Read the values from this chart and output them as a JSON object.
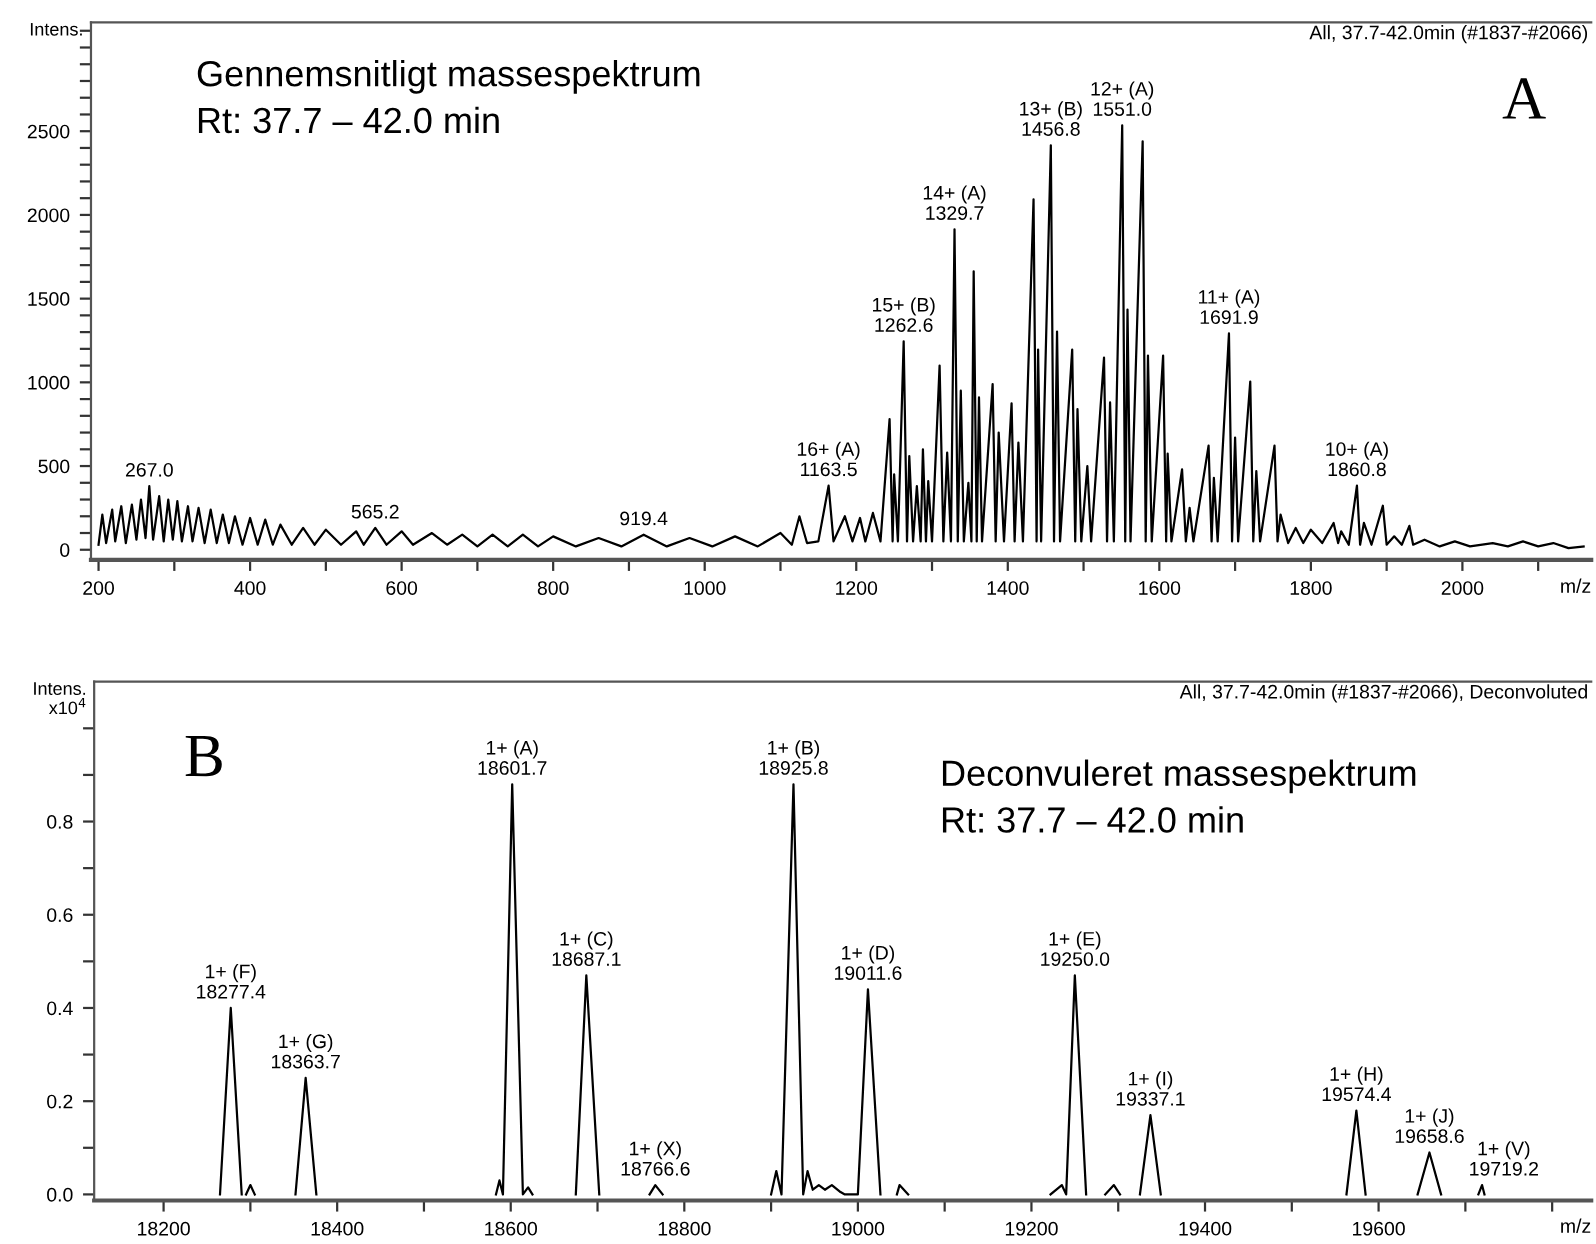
{
  "chart_data": [
    {
      "type": "line",
      "ylabel": "Intens.",
      "xlabel": "m/z",
      "grid": false,
      "marker": "none",
      "line_style": "solid",
      "xlim": [
        190,
        2170
      ],
      "ylim": [
        -60,
        3150
      ],
      "xticks": [
        200,
        {
          "value": 300,
          "label": null
        },
        400,
        {
          "value": 500,
          "label": null
        },
        600,
        {
          "value": 700,
          "label": null
        },
        800,
        {
          "value": 900,
          "label": null
        },
        1000,
        {
          "value": 1100,
          "label": null
        },
        1200,
        {
          "value": 1300,
          "label": null
        },
        1400,
        {
          "value": 1500,
          "label": null
        },
        1600,
        {
          "value": 1700,
          "label": null
        },
        1800,
        {
          "value": 1900,
          "label": null
        },
        2000,
        {
          "value": 2100,
          "label": null
        }
      ],
      "yticks": [
        0,
        {
          "value": 100,
          "label": null
        },
        {
          "value": 200,
          "label": null
        },
        {
          "value": 300,
          "label": null
        },
        {
          "value": 400,
          "label": null
        },
        500,
        {
          "value": 600,
          "label": null
        },
        {
          "value": 700,
          "label": null
        },
        {
          "value": 800,
          "label": null
        },
        {
          "value": 900,
          "label": null
        },
        1000,
        {
          "value": 1100,
          "label": null
        },
        {
          "value": 1200,
          "label": null
        },
        {
          "value": 1300,
          "label": null
        },
        {
          "value": 1400,
          "label": null
        },
        1500,
        {
          "value": 1600,
          "label": null
        },
        {
          "value": 1700,
          "label": null
        },
        {
          "value": 1800,
          "label": null
        },
        {
          "value": 1900,
          "label": null
        },
        2000,
        {
          "value": 2100,
          "label": null
        },
        {
          "value": 2200,
          "label": null
        },
        {
          "value": 2300,
          "label": null
        },
        {
          "value": 2400,
          "label": null
        },
        2500,
        {
          "value": 2600,
          "label": null
        },
        {
          "value": 2700,
          "label": null
        },
        {
          "value": 2800,
          "label": null
        },
        {
          "value": 2900,
          "label": null
        },
        {
          "value": 3000,
          "label": null
        },
        {
          "value": 3100,
          "label": null
        }
      ],
      "series": [
        {
          "color": "#000000",
          "x": [
            200,
            205,
            210,
            218,
            222,
            230,
            236,
            244,
            250,
            256,
            262,
            267,
            272,
            280,
            286,
            292,
            298,
            304,
            310,
            318,
            324,
            332,
            340,
            348,
            356,
            364,
            372,
            380,
            390,
            400,
            410,
            420,
            430,
            440,
            455,
            470,
            485,
            500,
            520,
            540,
            550,
            565.2,
            580,
            600,
            615,
            640,
            660,
            680,
            700,
            720,
            740,
            760,
            780,
            800,
            830,
            860,
            890,
            919.4,
            950,
            980,
            1010,
            1040,
            1070,
            1100,
            1115,
            1125,
            1135,
            1150,
            1163.5,
            1170,
            1185,
            1195,
            1205,
            1212,
            1222,
            1232,
            1244,
            1248,
            1250,
            1255,
            1262.6,
            1267,
            1270,
            1275,
            1280,
            1285,
            1288,
            1292,
            1295,
            1300,
            1310,
            1315,
            1320,
            1325,
            1329.7,
            1334,
            1338,
            1342,
            1348,
            1352,
            1355,
            1359,
            1362,
            1366,
            1380,
            1384,
            1388,
            1395,
            1405,
            1409,
            1414,
            1420,
            1434,
            1438,
            1440,
            1444,
            1456.8,
            1461,
            1465,
            1469,
            1485,
            1489,
            1492,
            1497,
            1505,
            1510,
            1527,
            1531,
            1535,
            1540,
            1551.0,
            1555,
            1558,
            1562,
            1578,
            1582,
            1585,
            1590,
            1605,
            1609,
            1611,
            1616,
            1630,
            1635,
            1640,
            1645,
            1665,
            1669,
            1672,
            1677,
            1691.9,
            1696,
            1700,
            1704,
            1720,
            1724,
            1728,
            1733,
            1752,
            1756,
            1760,
            1770,
            1780,
            1790,
            1800,
            1815,
            1830,
            1836,
            1840,
            1850,
            1860.8,
            1865,
            1870,
            1880,
            1895,
            1900,
            1910,
            1920,
            1930,
            1935,
            1950,
            1970,
            1990,
            2010,
            2040,
            2060,
            2080,
            2100,
            2120,
            2140,
            2160
          ],
          "values": [
            30,
            210,
            40,
            240,
            50,
            260,
            40,
            270,
            60,
            300,
            70,
            380,
            60,
            320,
            50,
            300,
            60,
            290,
            50,
            260,
            50,
            250,
            40,
            240,
            40,
            210,
            40,
            200,
            30,
            190,
            30,
            180,
            30,
            150,
            30,
            130,
            30,
            120,
            30,
            110,
            30,
            130,
            30,
            110,
            30,
            100,
            30,
            90,
            20,
            90,
            20,
            90,
            20,
            80,
            20,
            70,
            20,
            90,
            20,
            70,
            20,
            80,
            20,
            100,
            30,
            200,
            40,
            50,
            383,
            50,
            200,
            50,
            190,
            50,
            220,
            50,
            780,
            50,
            450,
            50,
            1245,
            50,
            560,
            50,
            380,
            50,
            600,
            50,
            410,
            50,
            1100,
            50,
            580,
            50,
            1914,
            50,
            950,
            50,
            400,
            50,
            1663,
            50,
            910,
            50,
            990,
            50,
            700,
            50,
            875,
            50,
            640,
            50,
            2093,
            50,
            1196,
            50,
            2416,
            50,
            1303,
            50,
            1196,
            50,
            840,
            50,
            500,
            50,
            1148,
            50,
            880,
            50,
            2535,
            50,
            1435,
            50,
            2440,
            50,
            1160,
            50,
            1160,
            50,
            574,
            50,
            480,
            50,
            250,
            50,
            622,
            50,
            430,
            50,
            1292,
            50,
            670,
            50,
            1005,
            50,
            470,
            50,
            622,
            50,
            210,
            40,
            130,
            40,
            120,
            40,
            160,
            40,
            110,
            30,
            383,
            30,
            160,
            30,
            263,
            30,
            80,
            30,
            143,
            30,
            60,
            20,
            50,
            20,
            40,
            20,
            50,
            20,
            40,
            10,
            20
          ]
        }
      ],
      "annotations": [
        "All, 37.7-42.0min (#1837-#2066)",
        "Gennemsnitligt massespektrum\nRt: 37.7 – 42.0 min",
        "A",
        {
          "text": "267.0",
          "x": 267,
          "y": 380
        },
        {
          "text": "565.2",
          "x": 565.2,
          "y": 130
        },
        {
          "text": "919.4",
          "x": 919.4,
          "y": 90
        },
        {
          "text": "16+ (A)\n1163.5",
          "x": 1163.5,
          "y": 383
        },
        {
          "text": "15+ (B)\n1262.6",
          "x": 1262.6,
          "y": 1245
        },
        {
          "text": "14+ (A)\n1329.7",
          "x": 1329.7,
          "y": 1914
        },
        {
          "text": "13+ (B)\n1456.8",
          "x": 1456.8,
          "y": 2416
        },
        {
          "text": "12+ (A)\n1551.0",
          "x": 1551.0,
          "y": 2535
        },
        {
          "text": "11+ (A)\n1691.9",
          "x": 1691.9,
          "y": 1292
        },
        {
          "text": "10+ (A)\n1860.8",
          "x": 1860.8,
          "y": 383
        }
      ]
    },
    {
      "type": "line",
      "ylabel": "Intens.\nx10$^{4}$",
      "xlabel": "m/z",
      "grid": false,
      "marker": "none",
      "line_style": "solid",
      "xlim": [
        18120,
        19845
      ],
      "ylim": [
        -0.013,
        1.1
      ],
      "xticks": [
        {
          "value": 18200,
          "label": "18200"
        },
        {
          "value": 18300,
          "label": null
        },
        {
          "value": 18400,
          "label": "18400"
        },
        {
          "value": 18500,
          "label": null
        },
        {
          "value": 18600,
          "label": "18600"
        },
        {
          "value": 18700,
          "label": null
        },
        {
          "value": 18800,
          "label": "18800"
        },
        {
          "value": 18900,
          "label": null
        },
        {
          "value": 19000,
          "label": "19000"
        },
        {
          "value": 19100,
          "label": null
        },
        {
          "value": 19200,
          "label": "19200"
        },
        {
          "value": 19300,
          "label": null
        },
        {
          "value": 19400,
          "label": "19400"
        },
        {
          "value": 19500,
          "label": null
        },
        {
          "value": 19600,
          "label": "19600"
        },
        {
          "value": 19700,
          "label": null
        },
        {
          "value": 19800,
          "label": null
        }
      ],
      "yticks": [
        {
          "value": 0,
          "label": "0.0"
        },
        {
          "value": 0.1,
          "label": null
        },
        {
          "value": 0.2,
          "label": "0.2"
        },
        {
          "value": 0.3,
          "label": null
        },
        {
          "value": 0.4,
          "label": "0.4"
        },
        {
          "value": 0.5,
          "label": null
        },
        {
          "value": 0.6,
          "label": "0.6"
        },
        {
          "value": 0.7,
          "label": null
        },
        {
          "value": 0.8,
          "label": "0.8"
        },
        {
          "value": 0.9,
          "label": null
        },
        {
          "value": 1.0,
          "label": null
        }
      ],
      "series": [
        {
          "color": "#000000",
          "x": [
            18265,
            18277.4,
            18290,
            18292,
            18295,
            18300,
            18305,
            18330,
            18352,
            18363.7,
            18376,
            18480,
            18583,
            18587,
            18591,
            18601.7,
            18614,
            18620,
            18625,
            18650,
            18675,
            18687.1,
            18702,
            18730,
            18760,
            18766.6,
            18775,
            18840,
            18900,
            18906,
            18912,
            18925.8,
            18937,
            18942,
            18948,
            18955,
            18962,
            18970,
            18980,
            18985,
            19000,
            19011.6,
            19026,
            19035,
            19045,
            19048,
            19058,
            19140,
            19222,
            19235,
            19240,
            19250.0,
            19263,
            19275,
            19285,
            19295,
            19302,
            19315,
            19325,
            19337.1,
            19349,
            19450,
            19563,
            19574.4,
            19585,
            19615,
            19645,
            19658.6,
            19672,
            19695,
            19715,
            19719.2,
            19722
          ],
          "values": [
            0,
            0.4,
            0,
            null,
            0,
            0.02,
            0,
            null,
            0,
            0.25,
            0,
            null,
            0,
            0.03,
            0,
            0.88,
            0,
            0.015,
            0,
            null,
            0,
            0.47,
            0,
            null,
            0,
            0.02,
            0,
            null,
            0,
            0.05,
            0,
            0.88,
            0,
            0.05,
            0.01,
            0.02,
            0.01,
            0.02,
            0.005,
            0,
            0,
            0.44,
            0,
            null,
            0,
            0.02,
            0,
            null,
            0,
            0.02,
            0,
            0.47,
            0,
            null,
            0,
            0.02,
            0,
            null,
            0,
            0.17,
            0,
            null,
            0,
            0.18,
            0,
            null,
            0,
            0.09,
            0,
            null,
            0,
            0.02,
            0
          ]
        }
      ],
      "annotations": [
        "All, 37.7-42.0min (#1837-#2066), Deconvoluted",
        "Deconvuleret massespektrum\nRt: 37.7 – 42.0 min",
        "B",
        {
          "text": "1+ (F)\n18277.4",
          "x": 18277.4,
          "y": 0.4
        },
        {
          "text": "1+ (G)\n18363.7",
          "x": 18363.7,
          "y": 0.25
        },
        {
          "text": "1+ (A)\n18601.7",
          "x": 18601.7,
          "y": 0.88
        },
        {
          "text": "1+ (C)\n18687.1",
          "x": 18687.1,
          "y": 0.47
        },
        {
          "text": "1+ (X)\n18766.6",
          "x": 18766.6,
          "y": 0.02
        },
        {
          "text": "1+ (B)\n18925.8",
          "x": 18925.8,
          "y": 0.88
        },
        {
          "text": "1+ (D)\n19011.6",
          "x": 19011.6,
          "y": 0.44
        },
        {
          "text": "1+ (E)\n19250.0",
          "x": 19250.0,
          "y": 0.47
        },
        {
          "text": "1+ (I)\n19337.1",
          "x": 19337.1,
          "y": 0.17
        },
        {
          "text": "1+ (H)\n19574.4",
          "x": 19574.4,
          "y": 0.18
        },
        {
          "text": "1+ (J)\n19658.6",
          "x": 19658.6,
          "y": 0.09
        },
        {
          "text": "1+ (V)\n19719.2",
          "x": 19719.2,
          "y": 0.02
        }
      ]
    }
  ]
}
